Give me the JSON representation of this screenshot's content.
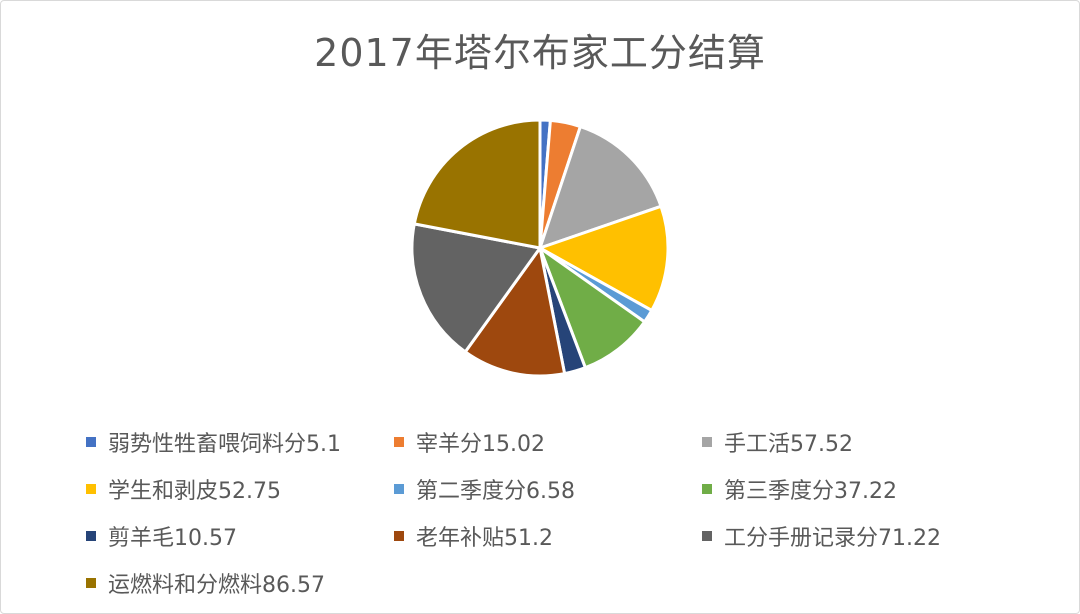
{
  "chart_data": {
    "type": "pie",
    "title": "2017年塔尔布家工分结算",
    "legend_position": "bottom",
    "slices": [
      {
        "label": "弱势性牲畜喂饲料分5.1",
        "value": 5.1,
        "color": "#4472C4"
      },
      {
        "label": "宰羊分15.02",
        "value": 15.02,
        "color": "#ED7D31"
      },
      {
        "label": "手工活57.52",
        "value": 57.52,
        "color": "#A5A5A5"
      },
      {
        "label": "学生和剥皮52.75",
        "value": 52.75,
        "color": "#FFC000"
      },
      {
        "label": "第二季度分6.58",
        "value": 6.58,
        "color": "#5B9BD5"
      },
      {
        "label": "第三季度分37.22",
        "value": 37.22,
        "color": "#70AD47"
      },
      {
        "label": "剪羊毛10.57",
        "value": 10.57,
        "color": "#264478"
      },
      {
        "label": "老年补贴51.2",
        "value": 51.2,
        "color": "#9E480E"
      },
      {
        "label": "工分手册记录分71.22",
        "value": 71.22,
        "color": "#636363"
      },
      {
        "label": "运燃料和分燃料86.57",
        "value": 86.57,
        "color": "#997300"
      }
    ]
  }
}
